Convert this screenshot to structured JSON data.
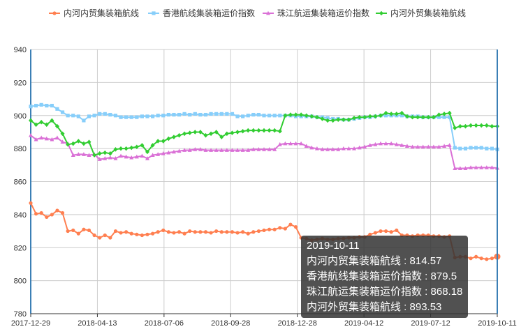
{
  "chart_data": {
    "type": "line",
    "title": "",
    "xlabel": "",
    "ylabel": "",
    "ylim": [
      780,
      940
    ],
    "yticks": [
      780,
      800,
      820,
      840,
      860,
      880,
      900,
      920,
      940
    ],
    "x_tick_labels": [
      "2017-12-29",
      "2018-04-13",
      "2018-07-06",
      "2018-09-28",
      "2018-12-28",
      "2019-04-12",
      "2019-07-12",
      "2019-10-11"
    ],
    "grid": true,
    "legend_position": "top",
    "series": [
      {
        "name": "内河内贸集装箱航线",
        "color": "#ff7f50",
        "marker": "circle",
        "values": [
          847,
          840.5,
          841,
          838.5,
          840,
          842.5,
          841,
          830,
          830.5,
          828.5,
          831,
          830.5,
          827.5,
          826,
          827.5,
          826,
          830,
          829,
          829.5,
          828.5,
          828,
          827.5,
          828,
          828.5,
          829.5,
          830.5,
          829.5,
          829,
          829.5,
          828.5,
          830,
          829.5,
          829.5,
          829.5,
          829,
          830,
          829.5,
          829.5,
          829.5,
          829,
          829.5,
          828.5,
          829.5,
          830,
          830.5,
          831,
          831,
          832,
          831.5,
          834,
          832.5,
          826,
          825.5,
          824.5,
          825,
          825.5,
          825,
          825,
          825.5,
          825.5,
          826,
          826,
          826.5,
          826.5,
          828,
          829,
          830,
          830,
          829.5,
          830.5,
          827.5,
          827.5,
          827,
          827.5,
          827.5,
          827.5,
          827,
          827,
          826.5,
          827,
          814,
          814.5,
          814.5,
          813.5,
          814.5,
          813.5,
          813,
          813.5,
          814.57
        ]
      },
      {
        "name": "香港航线集装箱运价指数",
        "color": "#87cefa",
        "marker": "square",
        "values": [
          905.5,
          906,
          906.5,
          906,
          906,
          904,
          902,
          900,
          900,
          899.5,
          897,
          899.5,
          900,
          901,
          901,
          900.5,
          900,
          899,
          899,
          899,
          899,
          899.5,
          899.5,
          899.5,
          900,
          900,
          900.5,
          900.5,
          900.5,
          901,
          900.5,
          901,
          900.5,
          900.5,
          901,
          901,
          901,
          901,
          901,
          899.5,
          899.5,
          900,
          900.5,
          900.5,
          900,
          900,
          900,
          900,
          900,
          900,
          899.5,
          899.5,
          899.5,
          899.5,
          899,
          899,
          898.5,
          898,
          898,
          897.5,
          897.5,
          898,
          898.5,
          899,
          899,
          899.5,
          900,
          900,
          900,
          900,
          900,
          899.5,
          899.5,
          899.5,
          899,
          899,
          899,
          899,
          899,
          899,
          880.5,
          880,
          880,
          880.5,
          880.5,
          880.5,
          880,
          880,
          879.5
        ]
      },
      {
        "name": "珠江航运集装箱运价指数",
        "color": "#da70d6",
        "marker": "triangle",
        "values": [
          888,
          885.5,
          886.5,
          886,
          885.5,
          886.5,
          884,
          883,
          876,
          876.5,
          876.5,
          876,
          876.5,
          873.5,
          874,
          874.5,
          874,
          875.5,
          875,
          874.5,
          875,
          875.5,
          874,
          876,
          876.5,
          877,
          877.5,
          878,
          878.5,
          879,
          879,
          879.5,
          879.5,
          879,
          879,
          879,
          879,
          879,
          879,
          879,
          879,
          879,
          879.5,
          879.5,
          879.5,
          879.5,
          879.5,
          882.5,
          883,
          883,
          883,
          883,
          881.5,
          880.5,
          880,
          879.5,
          879.5,
          879.5,
          879.5,
          880,
          880,
          880,
          880.5,
          881,
          882,
          882.5,
          883,
          883,
          883,
          882.5,
          882,
          881.5,
          881,
          881,
          881,
          881,
          881,
          881,
          881.5,
          882,
          868,
          868,
          868,
          868.5,
          868.5,
          868.5,
          868.5,
          868.5,
          868.18
        ]
      },
      {
        "name": "内河外贸集装箱航线",
        "color": "#32cd32",
        "marker": "diamond",
        "values": [
          897,
          894.5,
          896,
          894.5,
          897,
          893.5,
          889,
          882.5,
          883,
          884.5,
          883,
          884,
          876,
          877,
          877.5,
          877,
          879.5,
          880,
          880,
          880.5,
          881,
          882,
          878,
          882,
          884.5,
          884.5,
          886,
          887,
          888,
          889,
          889.5,
          890,
          890,
          888,
          889,
          890,
          887,
          889,
          889.5,
          890,
          890.5,
          891,
          891,
          891,
          891,
          891,
          891,
          890.5,
          900,
          900.5,
          900.5,
          900.5,
          900,
          899.5,
          899,
          898,
          897,
          897,
          897.5,
          897.5,
          897.5,
          898.5,
          899,
          899,
          899.5,
          899.5,
          900,
          901.5,
          901,
          901,
          901.5,
          899.5,
          899,
          899,
          899,
          899,
          899,
          900.5,
          901,
          901.5,
          892.5,
          893.5,
          893.5,
          894,
          894,
          894,
          894,
          893.5,
          893.53
        ]
      }
    ]
  },
  "tooltip": {
    "date": "2019-10-11",
    "lines": [
      "内河内贸集装箱航线 : 814.57",
      "香港航线集装箱运价指数 : 879.5",
      "珠江航运集装箱运价指数 : 868.18",
      "内河外贸集装箱航线 : 893.53"
    ]
  }
}
